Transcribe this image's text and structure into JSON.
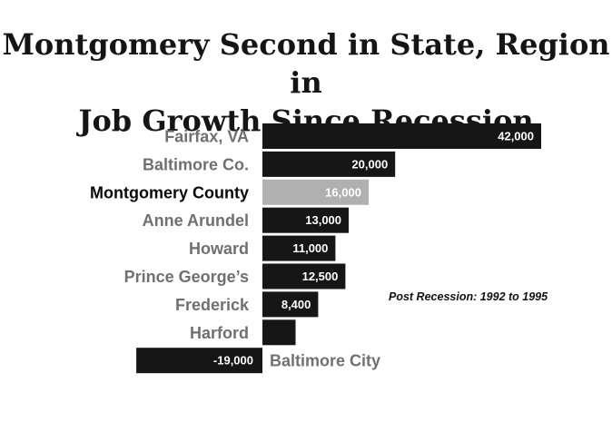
{
  "chart_data": {
    "type": "bar",
    "orientation": "horizontal",
    "title_lines": [
      "Montgomery Second in State, Region in",
      "Job Growth Since Recession"
    ],
    "categories": [
      "Fairfax, VA",
      "Baltimore Co.",
      "Montgomery County",
      "Anne Arundel",
      "Howard",
      "Prince George’s",
      "Frederick",
      "Harford",
      "Baltimore City"
    ],
    "values": [
      42000,
      20000,
      16000,
      13000,
      11000,
      12500,
      8400,
      5000,
      -19000
    ],
    "value_labels": [
      "42,000",
      "20,000",
      "16,000",
      "13,000",
      "11,000",
      "12,500",
      "8,400",
      "",
      "-19,000"
    ],
    "highlight_index": 2,
    "annotation": "Post Recession: 1992 to 1995",
    "xlim": [
      -19000,
      42000
    ],
    "grid": false,
    "legend": "none",
    "colors": {
      "bar": "#161616",
      "highlight_bar": "#b0b0b0",
      "label": "#707070",
      "highlight_label": "#0a0a0a",
      "value_text": "#ffffff"
    }
  }
}
